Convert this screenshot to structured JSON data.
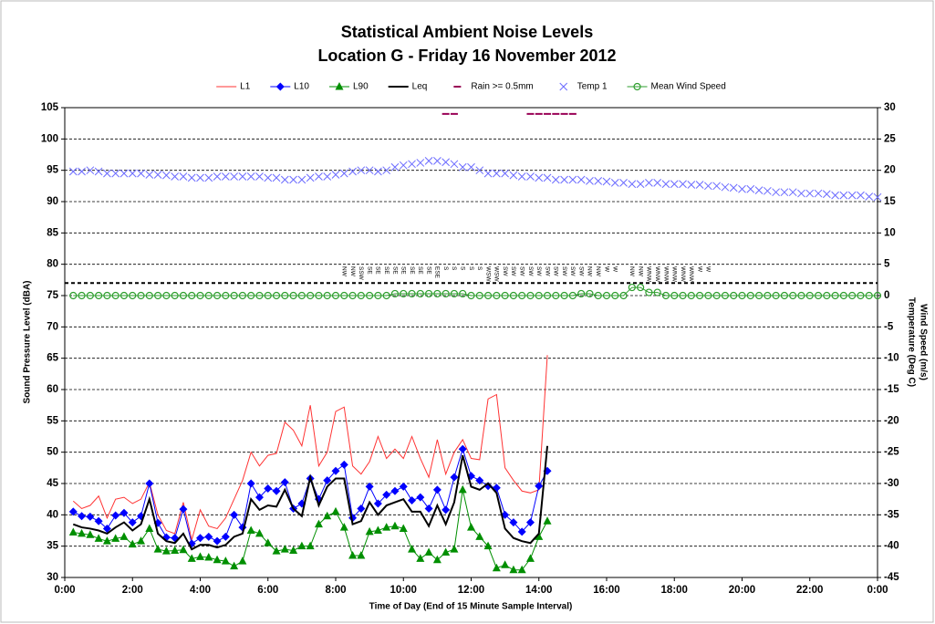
{
  "chart_data": {
    "type": "line",
    "title": "Statistical Ambient Noise Levels",
    "subtitle": "Location G - Friday 16 November 2012",
    "x_label": "Time of Day (End of 15 Minute Sample Interval)",
    "y_label": "Sound Pressure Level (dBA)",
    "y2_labels": [
      "Wind Speed (m/s)",
      "Temperature (Deg C)"
    ],
    "xlim": [
      0,
      24
    ],
    "xticks": [
      {
        "value": 0,
        "label": "0:00"
      },
      {
        "value": 2,
        "label": "2:00"
      },
      {
        "value": 4,
        "label": "4:00"
      },
      {
        "value": 6,
        "label": "6:00"
      },
      {
        "value": 8,
        "label": "8:00"
      },
      {
        "value": 10,
        "label": "10:00"
      },
      {
        "value": 12,
        "label": "12:00"
      },
      {
        "value": 14,
        "label": "14:00"
      },
      {
        "value": 16,
        "label": "16:00"
      },
      {
        "value": 18,
        "label": "18:00"
      },
      {
        "value": 20,
        "label": "20:00"
      },
      {
        "value": 22,
        "label": "22:00"
      },
      {
        "value": 24,
        "label": "0:00"
      }
    ],
    "ylim": [
      30,
      105
    ],
    "yticks": [
      30,
      35,
      40,
      45,
      50,
      55,
      60,
      65,
      70,
      75,
      80,
      85,
      90,
      95,
      100,
      105
    ],
    "y2lim": [
      -45,
      30
    ],
    "y2ticks": [
      -45,
      -40,
      -35,
      -30,
      -25,
      -20,
      -15,
      -10,
      -5,
      0,
      5,
      10,
      15,
      20,
      25,
      30
    ],
    "grid": true,
    "legend": "top",
    "reference_lines": [
      {
        "value": 2,
        "axis": "y2",
        "color": "#000000"
      }
    ],
    "x": [
      0.25,
      0.5,
      0.75,
      1,
      1.25,
      1.5,
      1.75,
      2,
      2.25,
      2.5,
      2.75,
      3,
      3.25,
      3.5,
      3.75,
      4,
      4.25,
      4.5,
      4.75,
      5,
      5.25,
      5.5,
      5.75,
      6,
      6.25,
      6.5,
      6.75,
      7,
      7.25,
      7.5,
      7.75,
      8,
      8.25,
      8.5,
      8.75,
      9,
      9.25,
      9.5,
      9.75,
      10,
      10.25,
      10.5,
      10.75,
      11,
      11.25,
      11.5,
      11.75,
      12,
      12.25,
      12.5,
      12.75,
      13,
      13.25,
      13.5,
      13.75,
      14,
      14.25,
      14.5,
      14.75,
      15,
      15.25,
      15.5,
      15.75,
      16,
      16.25,
      16.5,
      16.75,
      17,
      17.25,
      17.5,
      17.75,
      18,
      18.25,
      18.5,
      18.75,
      19,
      19.25,
      19.5,
      19.75,
      20,
      20.25,
      20.5,
      20.75,
      21,
      21.25,
      21.5,
      21.75,
      22,
      22.25,
      22.5,
      22.75,
      23,
      23.25,
      23.5,
      23.75,
      24
    ],
    "series": [
      {
        "name": "L1",
        "color": "#ff3333",
        "line": true,
        "marker": "none",
        "values": [
          42.2,
          41.0,
          41.5,
          43.0,
          39.5,
          42.5,
          42.8,
          41.8,
          42.5,
          45.2,
          40.0,
          37.5,
          37.0,
          42.0,
          36.0,
          40.8,
          38.2,
          37.8,
          39.5,
          42.5,
          45.5,
          50.0,
          47.8,
          49.5,
          49.8,
          54.8,
          53.5,
          51.0,
          57.5,
          47.8,
          50.0,
          56.5,
          57.2,
          47.8,
          46.5,
          48.5,
          52.5,
          49.0,
          50.5,
          49.0,
          52.5,
          49.0,
          46.0,
          52.0,
          46.5,
          50.0,
          52.0,
          49.0,
          48.8,
          58.5,
          59.2,
          47.5,
          45.5,
          43.8,
          43.5,
          44.0,
          65.5,
          null,
          null,
          null,
          null,
          null,
          null,
          null,
          null,
          null,
          null,
          null,
          null,
          null,
          null,
          null,
          null,
          null,
          null,
          null,
          null,
          null,
          null,
          null,
          null,
          null,
          null,
          null,
          null,
          null,
          null,
          null,
          null,
          null,
          null,
          null,
          null,
          null,
          null,
          null
        ]
      },
      {
        "name": "L10",
        "color": "#0000ff",
        "line": true,
        "marker": "diamond",
        "values": [
          40.5,
          39.8,
          39.7,
          39.0,
          37.8,
          39.9,
          40.3,
          38.8,
          39.8,
          45.0,
          38.7,
          36.4,
          36.3,
          40.9,
          35.4,
          36.3,
          36.5,
          35.8,
          36.5,
          40.0,
          38.0,
          45.0,
          42.8,
          44.2,
          43.8,
          45.2,
          41.0,
          41.8,
          45.8,
          42.5,
          45.5,
          47.0,
          48.0,
          39.5,
          41.0,
          44.5,
          41.8,
          43.2,
          43.8,
          44.5,
          42.3,
          42.8,
          41.0,
          44.0,
          40.8,
          46.0,
          50.5,
          46.2,
          45.5,
          44.6,
          44.3,
          40.0,
          38.8,
          37.3,
          38.8,
          44.6,
          47.0,
          null,
          null,
          null,
          null,
          null,
          null,
          null,
          null,
          null,
          null,
          null,
          null,
          null,
          null,
          null,
          null,
          null,
          null,
          null,
          null,
          null,
          null,
          null,
          null,
          null,
          null,
          null,
          null,
          null,
          null,
          null,
          null,
          null,
          null,
          null,
          null,
          null,
          null,
          null
        ]
      },
      {
        "name": "L90",
        "color": "#008f00",
        "line": true,
        "marker": "triangle",
        "values": [
          37.2,
          37.0,
          36.8,
          36.2,
          35.8,
          36.2,
          36.5,
          35.3,
          35.8,
          37.8,
          34.5,
          34.2,
          34.3,
          34.4,
          33.0,
          33.3,
          33.2,
          32.8,
          32.6,
          31.8,
          32.6,
          37.5,
          37.0,
          35.5,
          34.2,
          34.5,
          34.3,
          35.0,
          35.0,
          38.5,
          39.8,
          40.5,
          38.0,
          33.5,
          33.5,
          37.3,
          37.5,
          38.0,
          38.2,
          37.8,
          34.5,
          33.0,
          34.0,
          32.8,
          34.0,
          34.5,
          44.0,
          38.0,
          36.5,
          35.0,
          31.5,
          32.0,
          31.2,
          31.2,
          33.0,
          36.5,
          39.0,
          null,
          null,
          null,
          null,
          null,
          null,
          null,
          null,
          null,
          null,
          null,
          null,
          null,
          null,
          null,
          null,
          null,
          null,
          null,
          null,
          null,
          null,
          null,
          null,
          null,
          null,
          null,
          null,
          null,
          null,
          null,
          null,
          null,
          null,
          null,
          null,
          null,
          null,
          null
        ]
      },
      {
        "name": "Leq",
        "color": "#000000",
        "line": true,
        "marker": "none",
        "width": 2,
        "values": [
          38.5,
          38.0,
          37.8,
          37.5,
          37.0,
          38.0,
          38.8,
          37.5,
          38.5,
          42.5,
          37.0,
          35.8,
          35.5,
          37.0,
          34.5,
          35.2,
          35.2,
          34.8,
          35.2,
          36.5,
          37.0,
          42.5,
          40.8,
          41.5,
          41.3,
          44.0,
          41.0,
          39.8,
          46.0,
          41.5,
          44.5,
          45.8,
          45.8,
          38.5,
          39.0,
          42.0,
          40.0,
          41.5,
          42.0,
          42.5,
          40.5,
          40.5,
          38.2,
          41.5,
          38.5,
          42.0,
          49.5,
          44.5,
          44.0,
          45.0,
          43.5,
          37.8,
          36.3,
          35.8,
          35.5,
          37.0,
          51.0,
          null,
          null,
          null,
          null,
          null,
          null,
          null,
          null,
          null,
          null,
          null,
          null,
          null,
          null,
          null,
          null,
          null,
          null,
          null,
          null,
          null,
          null,
          null,
          null,
          null,
          null,
          null,
          null,
          null,
          null,
          null,
          null,
          null,
          null,
          null,
          null,
          null,
          null,
          null
        ]
      },
      {
        "name": "Rain >= 0.5mm",
        "color": "#990055",
        "line": false,
        "marker": "dash",
        "values": [
          null,
          null,
          null,
          null,
          null,
          null,
          null,
          null,
          null,
          null,
          null,
          null,
          null,
          null,
          null,
          null,
          null,
          null,
          null,
          null,
          null,
          null,
          null,
          null,
          null,
          null,
          null,
          null,
          null,
          null,
          null,
          null,
          null,
          null,
          null,
          null,
          null,
          null,
          null,
          null,
          null,
          null,
          null,
          null,
          104,
          104,
          null,
          null,
          null,
          null,
          null,
          null,
          null,
          null,
          104,
          104,
          104,
          104,
          104,
          104,
          null,
          null,
          null,
          null,
          null,
          null,
          null,
          null,
          null,
          null,
          null,
          null,
          null,
          null,
          null,
          null,
          null,
          null,
          null,
          null,
          null,
          null,
          null,
          null,
          null,
          null,
          null,
          null,
          null,
          null,
          null,
          null,
          null,
          null,
          null,
          null
        ]
      },
      {
        "name": "Temp 1",
        "color": "#6a6aff",
        "line": false,
        "marker": "x",
        "axis": "y2",
        "values": [
          19.8,
          19.8,
          20.0,
          19.8,
          19.5,
          19.5,
          19.5,
          19.5,
          19.5,
          19.3,
          19.3,
          19.2,
          19.0,
          19.0,
          18.8,
          18.8,
          18.8,
          19.0,
          19.0,
          19.0,
          19.0,
          19.0,
          19.0,
          18.8,
          18.8,
          18.5,
          18.5,
          18.5,
          18.8,
          19.0,
          19.0,
          19.3,
          19.5,
          19.8,
          20.0,
          20.0,
          19.8,
          20.0,
          20.5,
          20.8,
          21.0,
          21.2,
          21.5,
          21.5,
          21.3,
          21.0,
          20.5,
          20.5,
          20.0,
          19.5,
          19.5,
          19.5,
          19.2,
          19.0,
          19.0,
          18.8,
          18.8,
          18.5,
          18.5,
          18.5,
          18.5,
          18.3,
          18.3,
          18.2,
          18.0,
          18.0,
          17.8,
          17.8,
          18.0,
          18.0,
          17.8,
          17.8,
          17.8,
          17.7,
          17.7,
          17.5,
          17.5,
          17.3,
          17.2,
          17.0,
          17.0,
          16.8,
          16.7,
          16.5,
          16.5,
          16.5,
          16.3,
          16.3,
          16.3,
          16.2,
          16.0,
          16.0,
          16.0,
          16.0,
          15.8,
          15.7
        ]
      },
      {
        "name": "Mean Wind Speed",
        "color": "#2e9e2e",
        "line": true,
        "marker": "circle",
        "axis": "y2",
        "values": [
          0,
          0,
          0,
          0,
          0,
          0,
          0,
          0,
          0,
          0,
          0,
          0,
          0,
          0,
          0,
          0,
          0,
          0,
          0,
          0,
          0,
          0,
          0,
          0,
          0,
          0,
          0,
          0,
          0,
          0,
          0,
          0,
          0,
          0,
          0,
          0,
          0,
          0,
          0.3,
          0.3,
          0.3,
          0.3,
          0.3,
          0.3,
          0.3,
          0.3,
          0.3,
          0,
          0,
          0,
          0,
          0,
          0,
          0,
          0,
          0,
          0,
          0,
          0,
          0,
          0.3,
          0.3,
          0,
          0,
          0,
          0,
          1.3,
          1.3,
          0.5,
          0.5,
          0,
          0,
          0,
          0,
          0,
          0,
          0,
          0,
          0,
          0,
          0,
          0,
          0,
          0,
          0,
          0,
          0,
          0,
          0,
          0,
          0,
          0,
          0,
          0,
          0,
          0
        ]
      }
    ],
    "wind_direction": {
      "x": [
        8.25,
        8.5,
        8.75,
        9,
        9.25,
        9.5,
        9.75,
        10,
        10.25,
        10.5,
        10.75,
        11,
        11.25,
        11.5,
        11.75,
        12,
        12.25,
        12.5,
        12.75,
        13,
        13.25,
        13.5,
        13.75,
        14,
        14.25,
        14.5,
        14.75,
        15,
        15.25,
        15.5,
        15.75,
        16,
        16.25,
        16.75,
        17,
        17.25,
        17.5,
        17.75,
        18,
        18.25,
        18.5,
        18.75,
        19
      ],
      "labels": [
        "NW",
        "NW",
        "SSW",
        "SE",
        "SE",
        "SE",
        "SE",
        "SE",
        "SE",
        "SE",
        "SE",
        "ESE",
        "S",
        "S",
        "S",
        "S",
        "S",
        "WSW",
        "WSW",
        "SW",
        "SW",
        "SW",
        "SW",
        "SW",
        "SW",
        "SW",
        "SW",
        "SW",
        "SW",
        "NW",
        "NW",
        "W",
        "W",
        "NW",
        "NW",
        "WNW",
        "WNW",
        "WNW",
        "WNW",
        "WNW",
        "WNW",
        "W",
        "W"
      ]
    }
  }
}
